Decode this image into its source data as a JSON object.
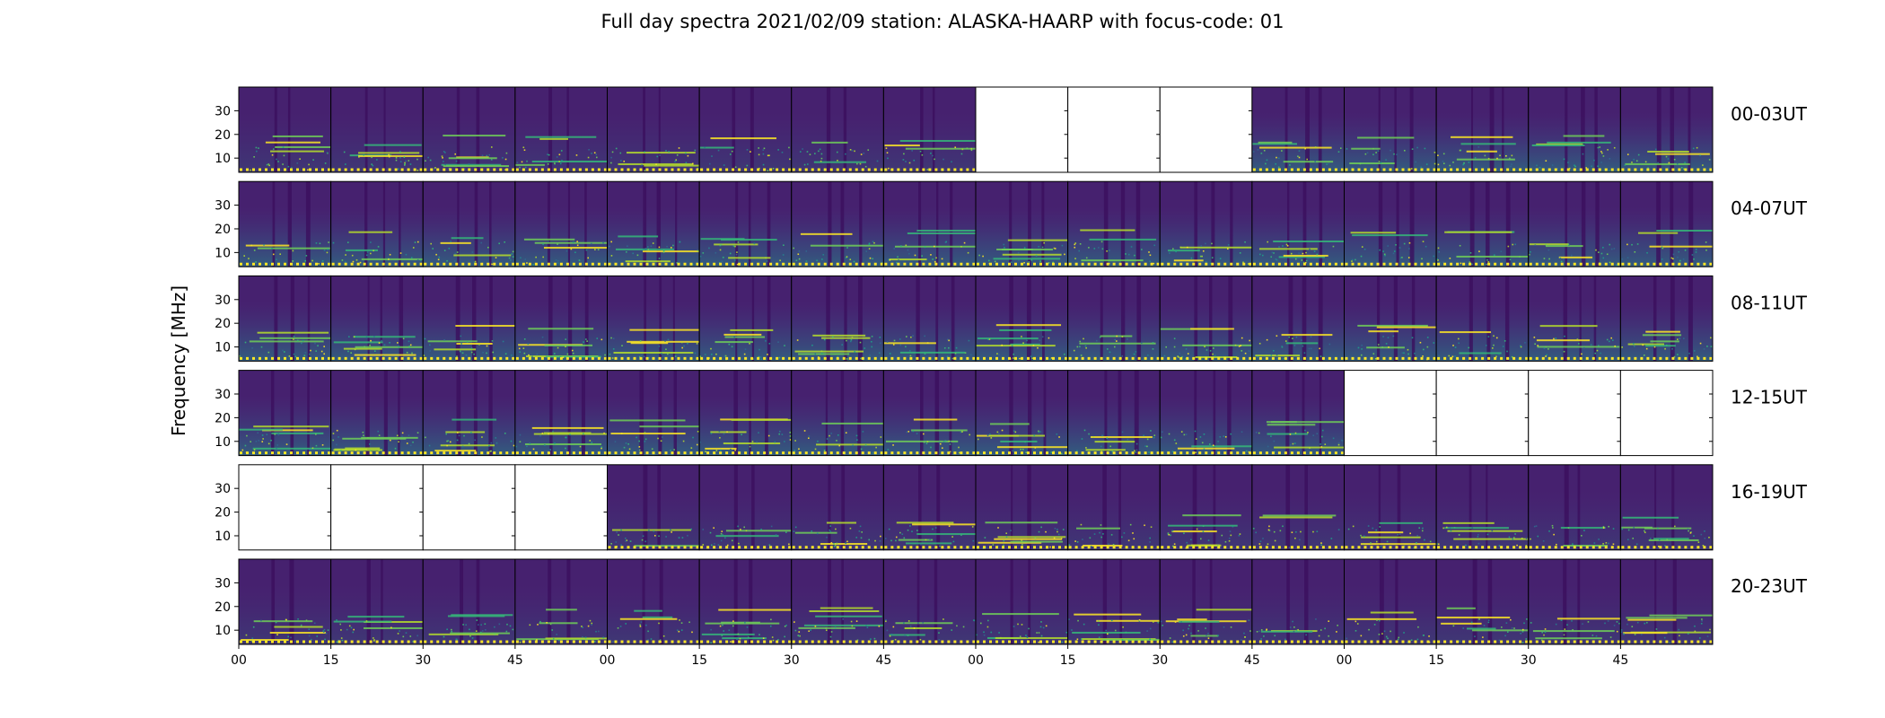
{
  "title": "Full day spectra 2021/02/09 station: ALASKA-HAARP with focus-code: 01",
  "chart_data": {
    "type": "heatmap",
    "colormap": "viridis",
    "ylabel": "Frequency [MHz]",
    "yticks": [
      10,
      20,
      30
    ],
    "ylim": [
      4,
      40
    ],
    "xticks": [
      "00",
      "15",
      "30",
      "45",
      "00",
      "15",
      "30",
      "45",
      "00",
      "15",
      "30",
      "45",
      "00",
      "15",
      "30",
      "45"
    ],
    "minutes_per_panel": 15,
    "panels_per_row": 16,
    "rows": [
      {
        "label": "00-03UT",
        "available": [
          1,
          1,
          1,
          1,
          1,
          1,
          1,
          1,
          0,
          0,
          0,
          1,
          1,
          1,
          1,
          1
        ]
      },
      {
        "label": "04-07UT",
        "available": [
          1,
          1,
          1,
          1,
          1,
          1,
          1,
          1,
          1,
          1,
          1,
          1,
          1,
          1,
          1,
          1
        ]
      },
      {
        "label": "08-11UT",
        "available": [
          1,
          1,
          1,
          1,
          1,
          1,
          1,
          1,
          1,
          1,
          1,
          1,
          1,
          1,
          1,
          1
        ]
      },
      {
        "label": "12-15UT",
        "available": [
          1,
          1,
          1,
          1,
          1,
          1,
          1,
          1,
          1,
          1,
          1,
          1,
          0,
          0,
          0,
          0
        ]
      },
      {
        "label": "16-19UT",
        "available": [
          0,
          0,
          0,
          0,
          1,
          1,
          1,
          1,
          1,
          1,
          1,
          1,
          1,
          1,
          1,
          1
        ]
      },
      {
        "label": "20-23UT",
        "available": [
          1,
          1,
          1,
          1,
          1,
          1,
          1,
          1,
          1,
          1,
          1,
          1,
          1,
          1,
          1,
          1
        ]
      }
    ]
  }
}
